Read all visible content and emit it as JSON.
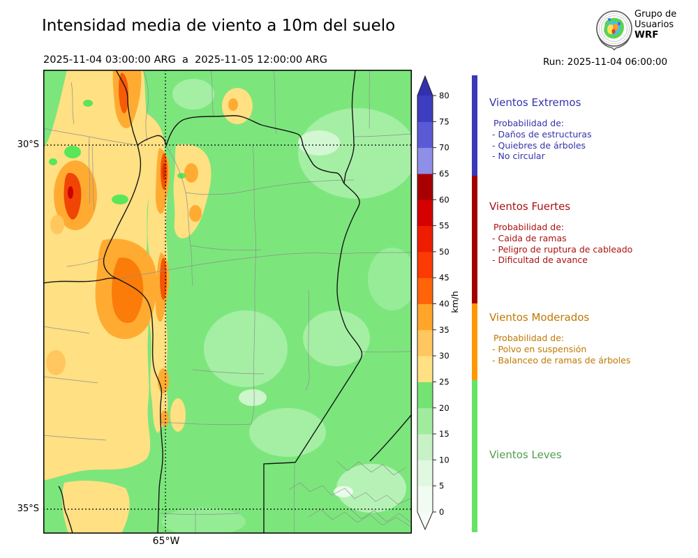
{
  "header": {
    "title": "Intensidad media de viento a 10m del suelo",
    "date_range": "2025-11-04 03:00:00 ARG  a  2025-11-05 12:00:00 ARG",
    "run_label": "Run: 2025-11-04 06:00:00",
    "logo_text": {
      "line1": "Grupo de",
      "line2": "Usuarios",
      "line3": "WRF"
    }
  },
  "map": {
    "lat_labels": [
      "30°S",
      "35°S"
    ],
    "lon_label": "65°W"
  },
  "colorbar": {
    "unit": "km/h",
    "tick_values": [
      0,
      5,
      10,
      15,
      20,
      25,
      30,
      35,
      40,
      45,
      50,
      55,
      60,
      65,
      70,
      75,
      80
    ],
    "segments_bottom_to_top": [
      "#f2fbf2",
      "#e0f7e0",
      "#c6f2c6",
      "#a0ec9e",
      "#74e374",
      "#ffe083",
      "#ffc75e",
      "#ffa52a",
      "#ff6408",
      "#fb3a04",
      "#ef1d00",
      "#d50000",
      "#a80000",
      "#8f8fe8",
      "#5a5ad5",
      "#3d3dbf"
    ],
    "extend_above_color": "#3131b0",
    "extend_below_color": "#f6fcf6"
  },
  "legend": {
    "categories": [
      {
        "name": "Vientos Extremos",
        "text_color": "#3333aa",
        "strip_color": "#3a3ab8",
        "items_title": "Probabilidad de:",
        "items": [
          "- Daños de estructuras",
          "- Quiebres de árboles",
          "- No circular"
        ]
      },
      {
        "name": "Vientos Fuertes",
        "text_color": "#aa1111",
        "strip_color": "#a30000",
        "items_title": "Probabilidad de:",
        "items": [
          "- Caida de ramas",
          "- Peligro de ruptura de cableado",
          "- Dificultad de avance"
        ]
      },
      {
        "name": "Vientos Moderados",
        "text_color": "#c07800",
        "strip_color": "#ff9800",
        "items_title": "Probabilidad de:",
        "items": [
          "- Polvo en suspensión",
          "- Balanceo de ramas de árboles"
        ]
      },
      {
        "name": "Vientos Leves",
        "text_color": "#4d9e4d",
        "strip_color": "#66e366",
        "items_title": "",
        "items": []
      }
    ]
  }
}
